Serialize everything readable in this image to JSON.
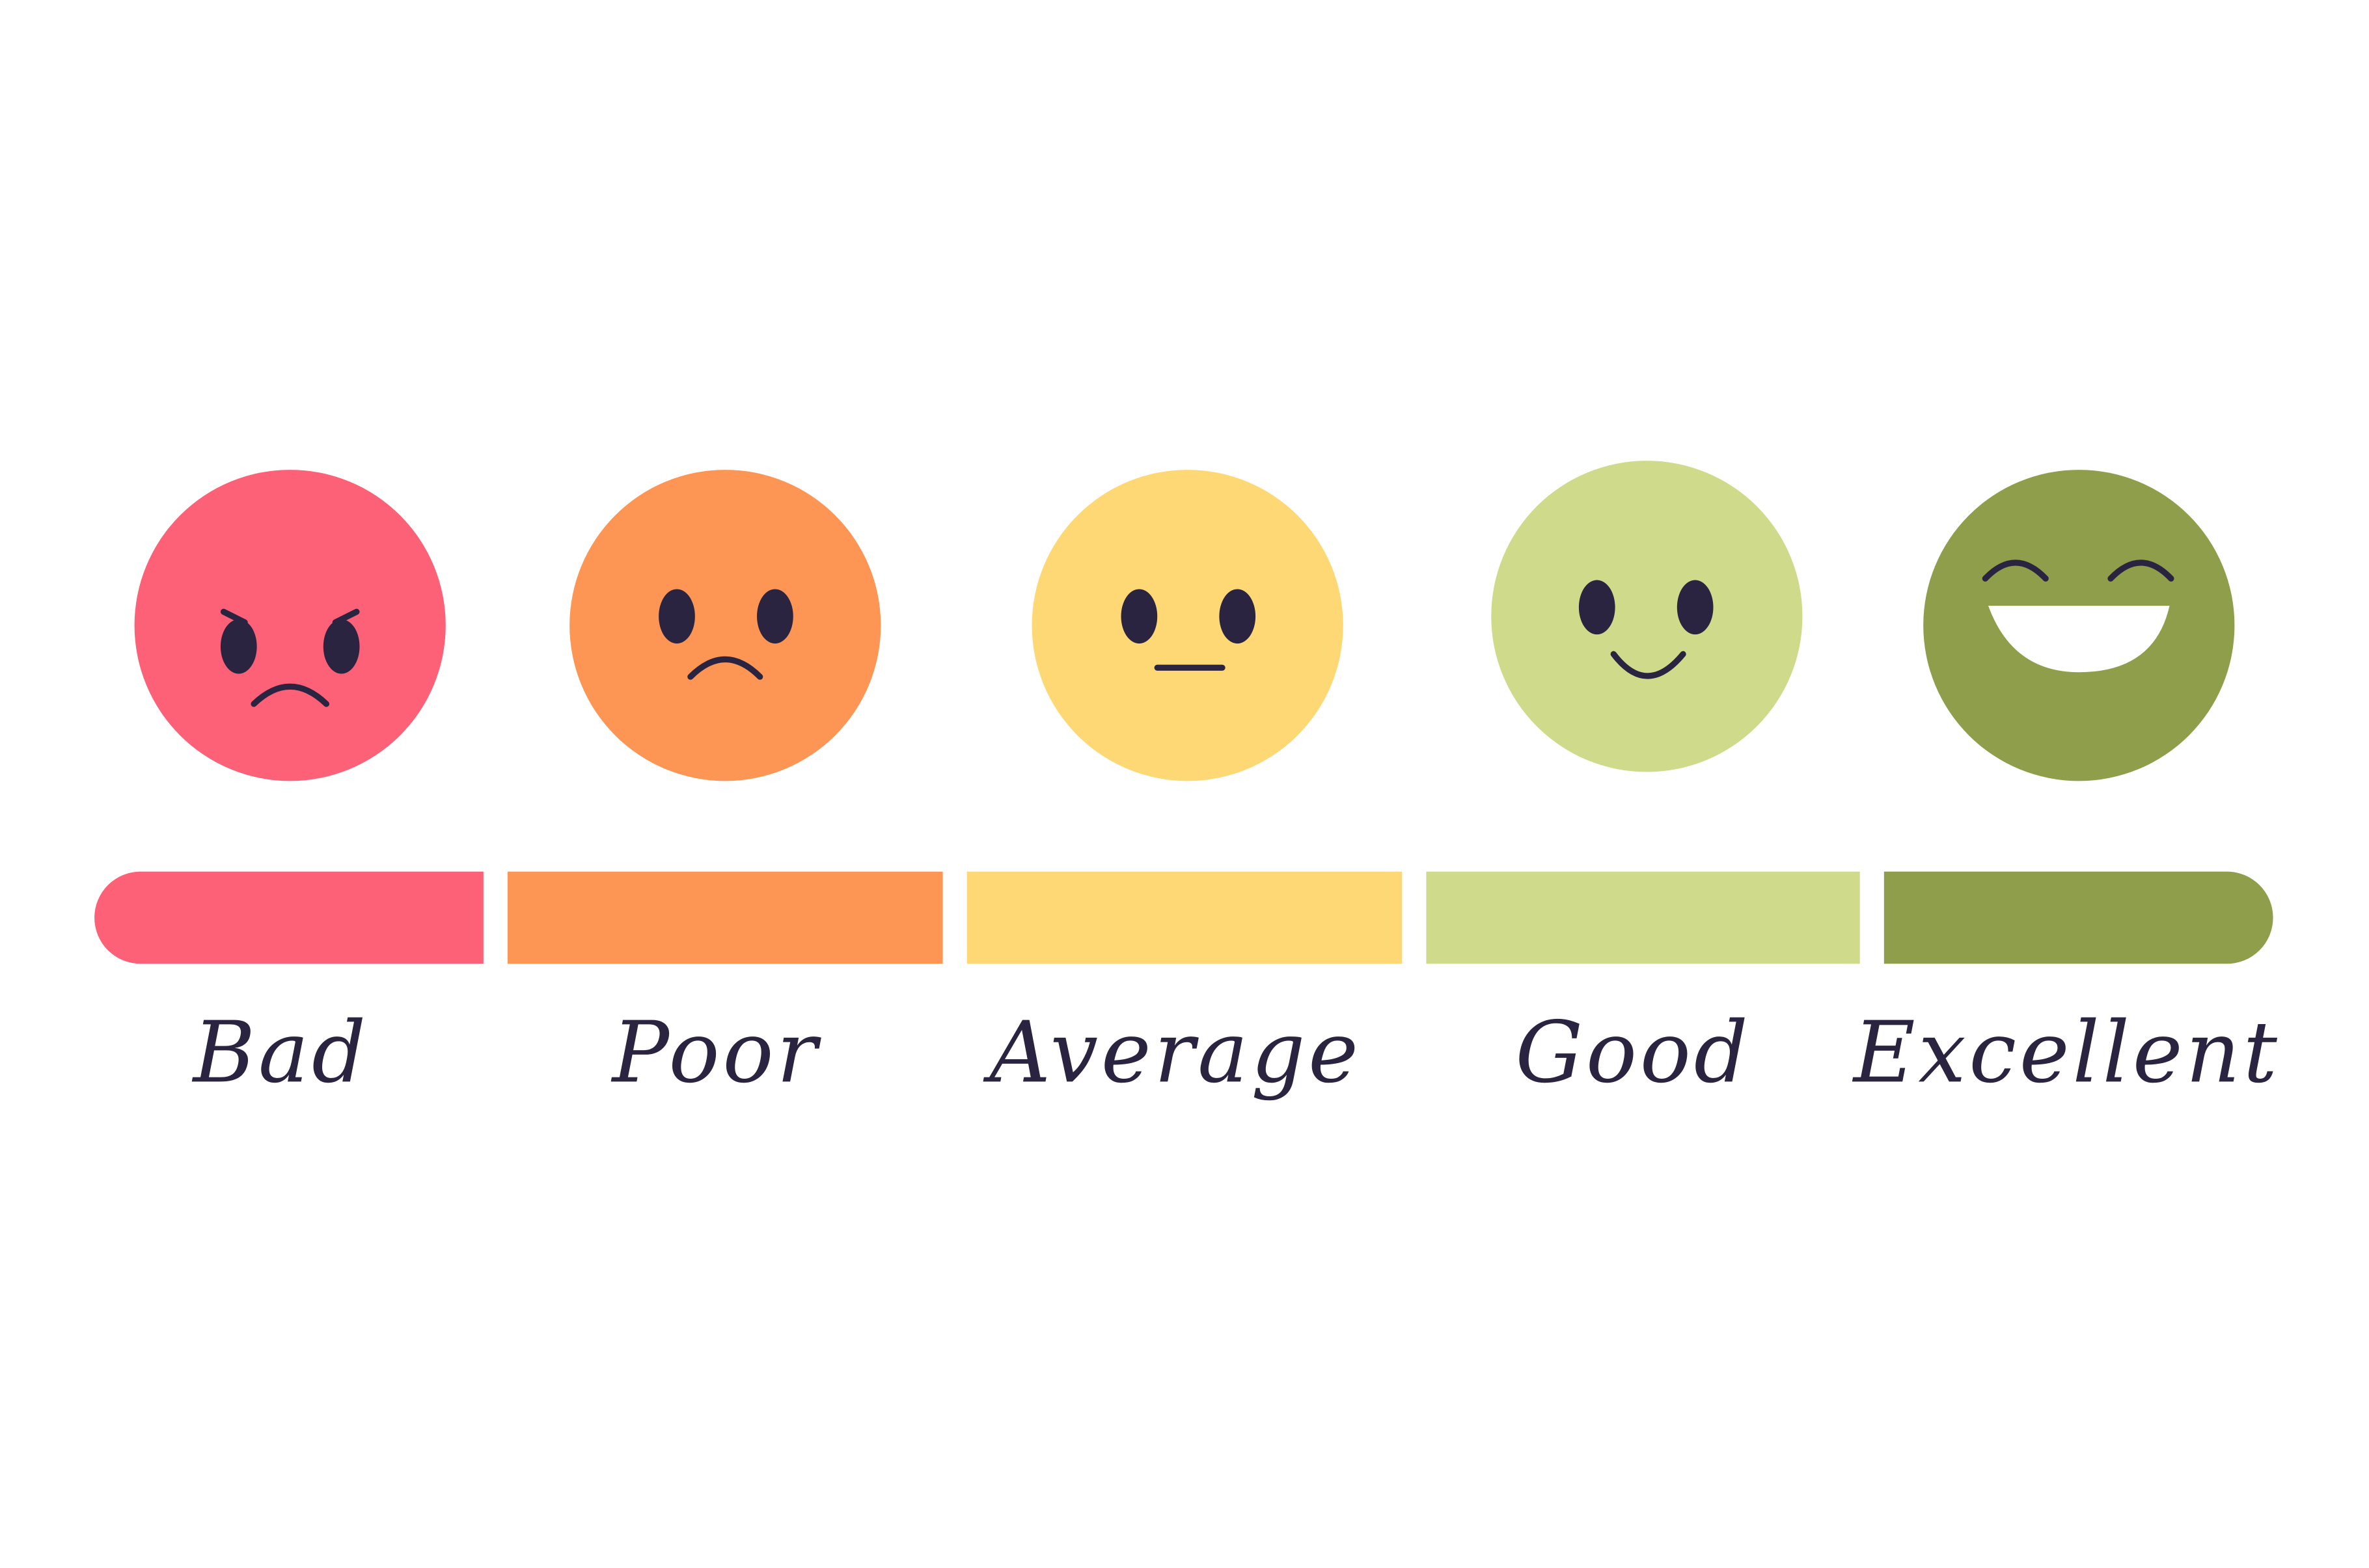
{
  "ratings": [
    {
      "label": "Bad"
    },
    {
      "label": "Poor"
    },
    {
      "label": "Average"
    },
    {
      "label": "Good"
    },
    {
      "label": "Excellent"
    }
  ]
}
